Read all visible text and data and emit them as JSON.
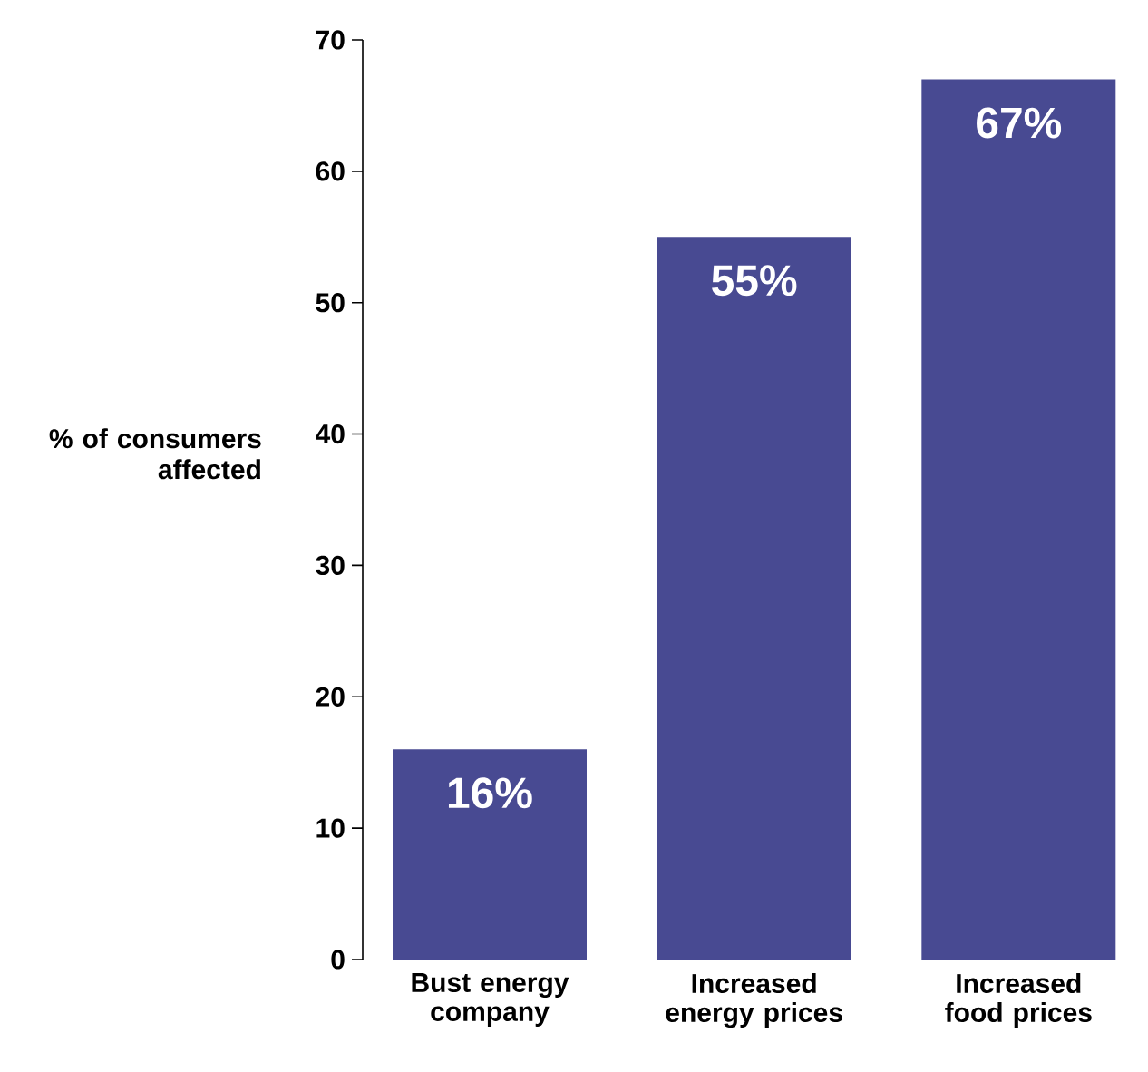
{
  "chart_data": {
    "type": "bar",
    "ylabel": "% of consumers affected",
    "categories": [
      "Bust energy company",
      "Increased energy prices",
      "Increased food prices"
    ],
    "values": [
      16,
      55,
      67
    ],
    "value_labels": [
      "16%",
      "55%",
      "67%"
    ],
    "color": "#484a92",
    "ylim": [
      0,
      70
    ],
    "yticks": [
      0,
      10,
      20,
      30,
      40,
      50,
      60,
      70
    ],
    "grid": false
  }
}
